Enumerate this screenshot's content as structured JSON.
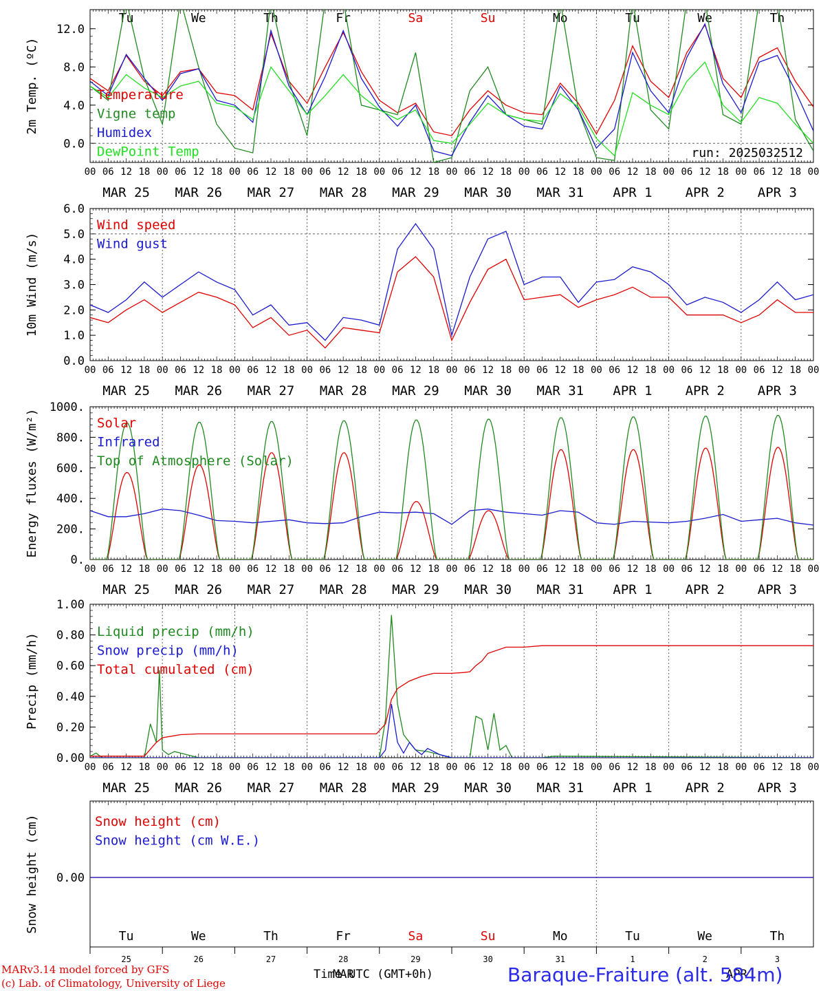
{
  "run_label": "run: 2025032512",
  "footer": {
    "model_line": "MARv3.14 model forced by GFS",
    "lab_line": "(c) Lab. of Climatology, University of Liege",
    "time_label": "Time UTC (GMT+0h)",
    "month_overlay_1": "MAR",
    "month_overlay_2": "APR",
    "station": "Baraque-Fraiture (alt. 584m)"
  },
  "colors": {
    "red": "#e00000",
    "green": "#208a20",
    "blue": "#1a1ad0",
    "lightgreen": "#22e022",
    "grid": "#606060"
  },
  "days": {
    "weekdays": [
      "Tu",
      "We",
      "Th",
      "Fr",
      "Sa",
      "Su",
      "Mo",
      "Tu",
      "We",
      "Th"
    ],
    "weekend_flags": [
      false,
      false,
      false,
      false,
      true,
      true,
      false,
      false,
      false,
      false
    ],
    "dates": [
      "MAR 25",
      "MAR 26",
      "MAR 27",
      "MAR 28",
      "MAR 29",
      "MAR 30",
      "MAR 31",
      "APR  1",
      "APR  2",
      "APR  3"
    ],
    "day_numbers": [
      "25",
      "26",
      "27",
      "28",
      "29",
      "30",
      "31",
      "1",
      "2",
      "3"
    ],
    "hour_ticks": [
      "00",
      "06",
      "12",
      "18"
    ],
    "final_hour_tick": "00"
  },
  "chart_data": [
    {
      "type": "line",
      "ylabel": "2m Temp. (ºC)",
      "ylim": [
        -2,
        14
      ],
      "yticks": [
        "0.0",
        "4.0",
        "8.0",
        "12.0"
      ],
      "ytick_values": [
        0,
        4,
        8,
        12
      ],
      "dashed_ref": 0,
      "x_unit": "hours since 2025-03-25 00:00 UTC",
      "x": [
        0,
        6,
        12,
        18,
        24,
        30,
        36,
        42,
        48,
        54,
        60,
        66,
        72,
        78,
        84,
        90,
        96,
        102,
        108,
        114,
        120,
        126,
        132,
        138,
        144,
        150,
        156,
        162,
        168,
        174,
        180,
        186,
        192,
        198,
        204,
        210,
        216,
        222,
        228,
        234,
        240
      ],
      "series": [
        {
          "name": "Temperature",
          "color": "red",
          "values": [
            6.8,
            5.5,
            9.2,
            6.5,
            5.0,
            7.5,
            7.8,
            5.3,
            5.0,
            3.5,
            11.5,
            6.5,
            4.2,
            8.0,
            11.6,
            7.5,
            4.5,
            3.2,
            4.2,
            1.2,
            0.8,
            3.5,
            5.5,
            4.0,
            3.2,
            3.0,
            6.3,
            4.2,
            1.0,
            4.5,
            10.2,
            6.5,
            4.8,
            9.5,
            12.4,
            6.8,
            4.8,
            9.0,
            10.0,
            6.5,
            3.8
          ]
        },
        {
          "name": "Vigne temp",
          "color": "green",
          "values": [
            6.0,
            4.5,
            15.0,
            6.8,
            2.0,
            15.0,
            8.0,
            2.0,
            -0.5,
            -1.0,
            15.0,
            6.5,
            0.8,
            15.0,
            15.0,
            4.0,
            3.5,
            3.0,
            9.5,
            -2.0,
            -1.5,
            5.5,
            8.0,
            3.0,
            2.5,
            2.0,
            15.0,
            3.5,
            -1.5,
            -1.8,
            15.0,
            3.5,
            1.5,
            15.0,
            15.0,
            3.0,
            2.0,
            15.0,
            15.0,
            2.5,
            -0.8
          ]
        },
        {
          "name": "Humidex",
          "color": "blue",
          "values": [
            6.5,
            5.0,
            9.3,
            6.8,
            4.5,
            7.3,
            7.8,
            4.5,
            4.0,
            2.2,
            11.8,
            6.0,
            3.0,
            7.0,
            11.8,
            6.8,
            3.8,
            1.8,
            4.0,
            -0.8,
            -1.3,
            2.2,
            5.0,
            3.0,
            1.8,
            1.5,
            6.0,
            3.5,
            -0.5,
            1.5,
            9.5,
            5.5,
            3.2,
            9.0,
            12.5,
            6.2,
            3.2,
            8.5,
            9.2,
            5.5,
            1.3
          ]
        },
        {
          "name": "DewPoint Temp",
          "color": "lightgreen",
          "values": [
            6.0,
            4.8,
            7.2,
            5.8,
            4.8,
            6.0,
            6.5,
            4.2,
            3.8,
            2.5,
            8.0,
            5.5,
            3.0,
            5.0,
            7.2,
            5.0,
            3.5,
            2.5,
            3.5,
            0.3,
            0.0,
            2.0,
            4.2,
            3.0,
            2.5,
            2.3,
            5.2,
            3.8,
            0.5,
            -1.3,
            5.3,
            4.0,
            3.0,
            6.5,
            8.5,
            4.0,
            2.2,
            4.8,
            4.2,
            2.0,
            0.0
          ]
        }
      ]
    },
    {
      "type": "line",
      "ylabel": "10m Wind (m/s)",
      "ylim": [
        0,
        6
      ],
      "yticks": [
        "0.0",
        "1.0",
        "2.0",
        "3.0",
        "4.0",
        "5.0",
        "6.0"
      ],
      "ytick_values": [
        0,
        1,
        2,
        3,
        4,
        5,
        6
      ],
      "dashed_ref": 5,
      "x_unit": "hours since 2025-03-25 00:00 UTC",
      "x": [
        0,
        6,
        12,
        18,
        24,
        30,
        36,
        42,
        48,
        54,
        60,
        66,
        72,
        78,
        84,
        90,
        96,
        102,
        108,
        114,
        120,
        126,
        132,
        138,
        144,
        150,
        156,
        162,
        168,
        174,
        180,
        186,
        192,
        198,
        204,
        210,
        216,
        222,
        228,
        234,
        240
      ],
      "series": [
        {
          "name": "Wind speed",
          "color": "red",
          "values": [
            1.7,
            1.5,
            2.0,
            2.4,
            1.9,
            2.3,
            2.7,
            2.5,
            2.2,
            1.3,
            1.7,
            1.0,
            1.2,
            0.5,
            1.3,
            1.2,
            1.1,
            3.5,
            4.1,
            3.3,
            0.8,
            2.3,
            3.6,
            4.0,
            2.4,
            2.5,
            2.6,
            2.1,
            2.4,
            2.6,
            2.9,
            2.5,
            2.5,
            1.8,
            1.8,
            1.8,
            1.5,
            1.8,
            2.4,
            1.9,
            1.9
          ]
        },
        {
          "name": "Wind gust",
          "color": "blue",
          "values": [
            2.2,
            1.9,
            2.4,
            3.1,
            2.5,
            3.0,
            3.5,
            3.1,
            2.8,
            1.8,
            2.2,
            1.4,
            1.5,
            0.8,
            1.7,
            1.6,
            1.4,
            4.4,
            5.4,
            4.4,
            1.0,
            3.3,
            4.8,
            5.1,
            3.0,
            3.3,
            3.3,
            2.3,
            3.1,
            3.2,
            3.7,
            3.5,
            3.0,
            2.2,
            2.5,
            2.3,
            1.9,
            2.4,
            3.1,
            2.4,
            2.6
          ]
        }
      ]
    },
    {
      "type": "line",
      "ylabel": "Energy fluxes (W/m²)",
      "ylim": [
        0,
        1000
      ],
      "yticks": [
        "0.",
        "200.",
        "400.",
        "600.",
        "800.",
        "1000."
      ],
      "ytick_values": [
        0,
        200,
        400,
        600,
        800,
        1000
      ],
      "x_unit": "hours since 2025-03-25 00:00 UTC",
      "series": [
        {
          "name": "Solar",
          "color": "red",
          "day_peaks": [
            570,
            620,
            700,
            700,
            380,
            320,
            720,
            720,
            730,
            735
          ]
        },
        {
          "name": "Infrared",
          "color": "blue",
          "x": [
            0,
            6,
            12,
            18,
            24,
            30,
            36,
            42,
            48,
            54,
            60,
            66,
            72,
            78,
            84,
            90,
            96,
            102,
            108,
            114,
            120,
            126,
            132,
            138,
            144,
            150,
            156,
            162,
            168,
            174,
            180,
            186,
            192,
            198,
            204,
            210,
            216,
            222,
            228,
            234,
            240
          ],
          "values": [
            320,
            280,
            280,
            300,
            330,
            320,
            290,
            255,
            250,
            240,
            250,
            260,
            240,
            235,
            240,
            280,
            310,
            305,
            310,
            300,
            230,
            320,
            330,
            310,
            300,
            290,
            320,
            310,
            240,
            230,
            250,
            245,
            240,
            250,
            270,
            295,
            250,
            260,
            270,
            240,
            225
          ]
        },
        {
          "name": "Top of Atmosphere (Solar)",
          "color": "green",
          "day_peaks": [
            895,
            900,
            905,
            910,
            915,
            920,
            930,
            935,
            940,
            945
          ]
        }
      ]
    },
    {
      "type": "line",
      "ylabel": "Precip (mm/h)",
      "ylim": [
        0,
        1
      ],
      "yticks": [
        "0.00",
        "0.20",
        "0.40",
        "0.60",
        "0.80",
        "1.00"
      ],
      "ytick_values": [
        0,
        0.2,
        0.4,
        0.6,
        0.8,
        1.0
      ],
      "x_unit": "hours since 2025-03-25 00:00 UTC",
      "series": [
        {
          "name": "Liquid precip (mm/h)",
          "color": "green",
          "x": [
            0,
            2,
            4,
            18,
            20,
            22,
            23,
            24,
            26,
            28,
            32,
            36,
            42,
            48,
            96,
            98,
            100,
            102,
            104,
            106,
            108,
            112,
            116,
            120,
            126,
            128,
            130,
            132,
            134,
            136,
            138,
            140,
            142,
            150,
            154,
            240
          ],
          "values": [
            0.01,
            0.03,
            0.0,
            0.0,
            0.22,
            0.1,
            0.57,
            0.05,
            0.02,
            0.04,
            0.02,
            0.0,
            0.0,
            0.0,
            0.0,
            0.25,
            0.93,
            0.35,
            0.15,
            0.1,
            0.05,
            0.04,
            0.02,
            0.0,
            0.0,
            0.27,
            0.25,
            0.05,
            0.29,
            0.05,
            0.08,
            0.0,
            0.0,
            0.0,
            0.01,
            0.0
          ]
        },
        {
          "name": "Snow precip (mm/h)",
          "color": "blue",
          "x": [
            0,
            96,
            98,
            100,
            102,
            104,
            106,
            108,
            110,
            112,
            116,
            120,
            240
          ],
          "values": [
            0.0,
            0.0,
            0.05,
            0.35,
            0.1,
            0.03,
            0.1,
            0.05,
            0.02,
            0.06,
            0.02,
            0.0,
            0.0
          ]
        },
        {
          "name": "Total cumulated (cm)",
          "color": "red",
          "x": [
            0,
            18,
            22,
            24,
            30,
            36,
            48,
            72,
            95,
            98,
            100,
            102,
            106,
            110,
            114,
            120,
            124,
            126,
            128,
            130,
            132,
            138,
            144,
            150,
            160,
            170,
            180,
            200,
            240
          ],
          "values": [
            0.01,
            0.01,
            0.1,
            0.13,
            0.15,
            0.155,
            0.155,
            0.155,
            0.155,
            0.22,
            0.38,
            0.45,
            0.5,
            0.53,
            0.55,
            0.55,
            0.555,
            0.56,
            0.6,
            0.63,
            0.68,
            0.72,
            0.72,
            0.73,
            0.73,
            0.73,
            0.73,
            0.73,
            0.73
          ]
        }
      ]
    },
    {
      "type": "line",
      "ylabel": "Snow height (cm)",
      "yticks": [
        "0.00"
      ],
      "ytick_values": [
        0
      ],
      "x_unit": "hours since 2025-03-25 00:00 UTC",
      "series": [
        {
          "name": "Snow height (cm)",
          "color": "red",
          "x": [
            0,
            240
          ],
          "values": [
            0,
            0
          ]
        },
        {
          "name": "Snow height (cm W.E.)",
          "color": "blue",
          "x": [
            0,
            240
          ],
          "values": [
            0,
            0
          ]
        }
      ]
    }
  ]
}
